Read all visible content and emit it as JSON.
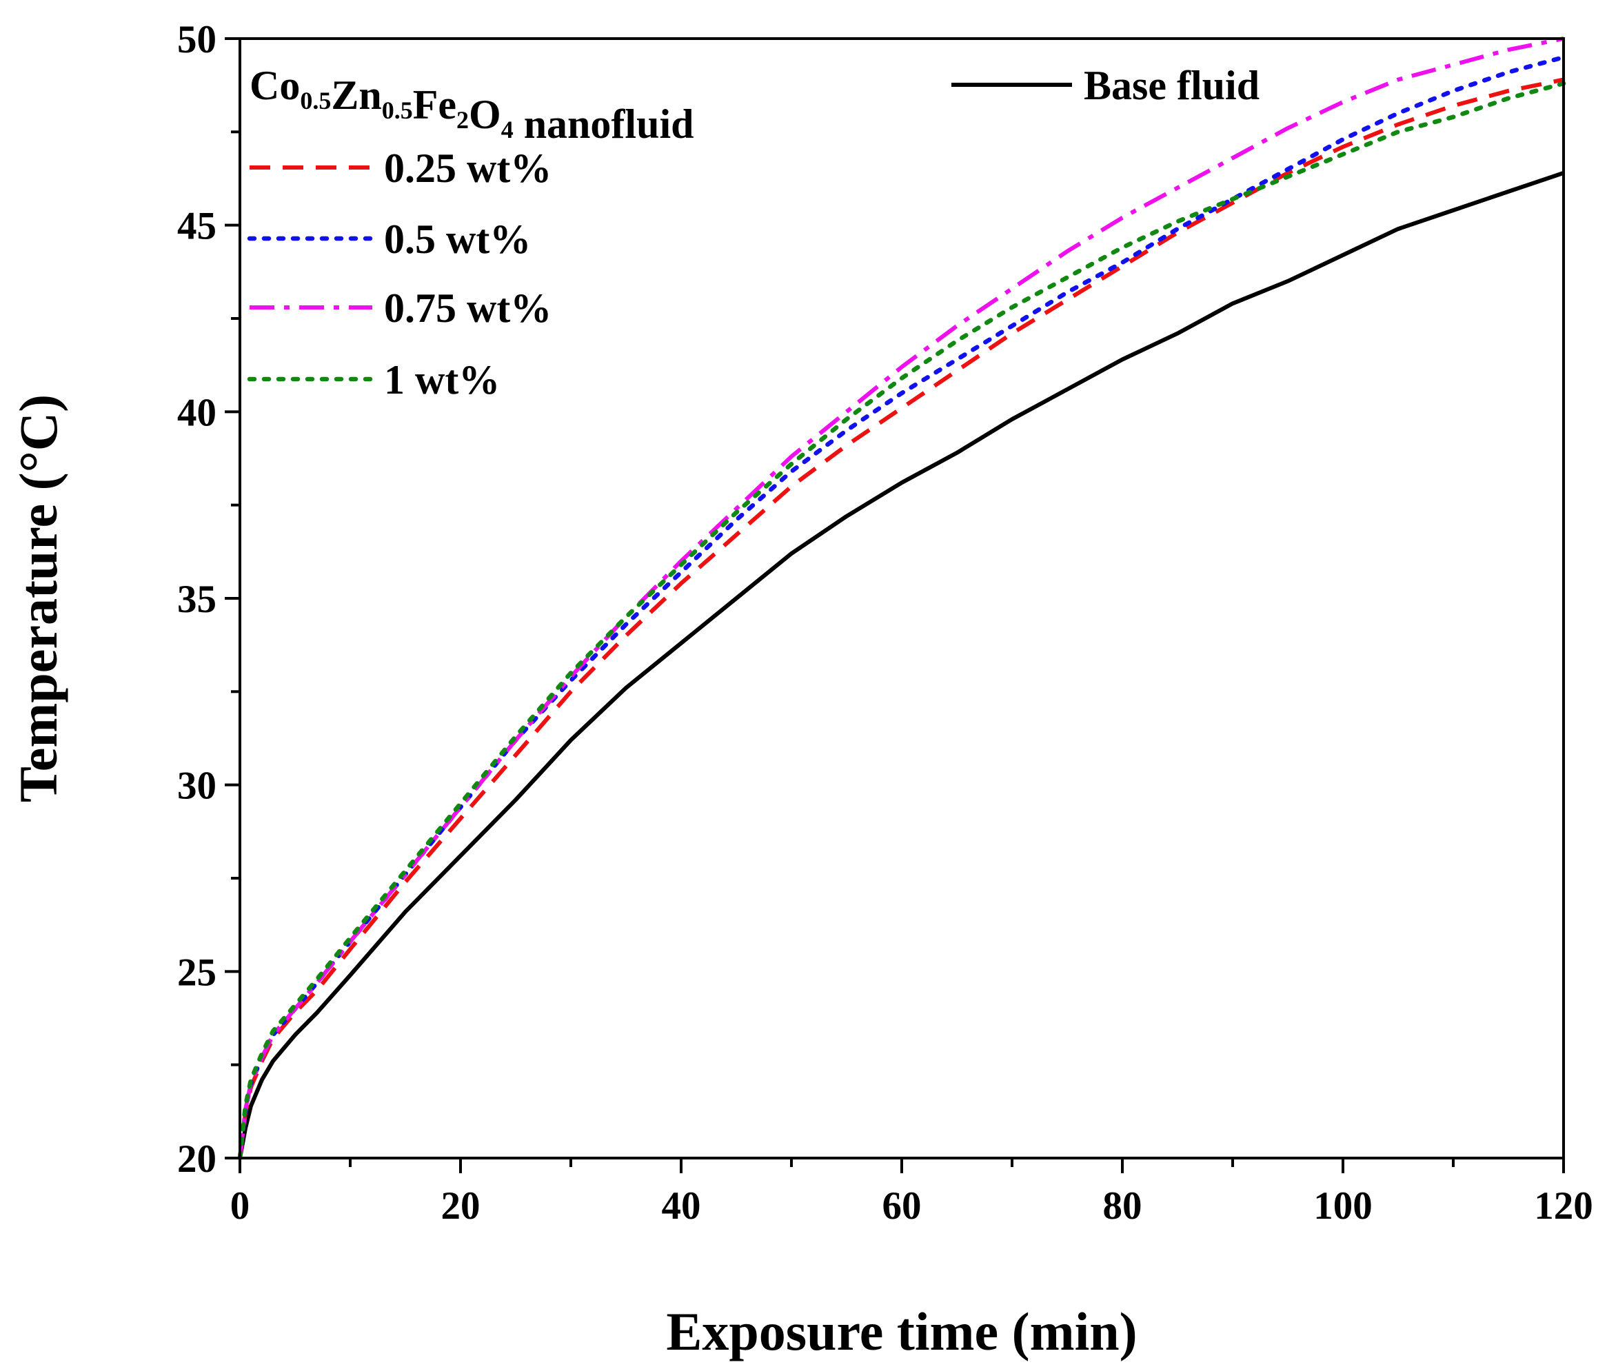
{
  "chart_data": {
    "type": "line",
    "title": "",
    "xlabel": "Exposure time (min)",
    "ylabel": "Temperature (°C)",
    "xlim": [
      0,
      120
    ],
    "ylim": [
      20,
      50
    ],
    "xticks": [
      0,
      20,
      40,
      60,
      80,
      100,
      120
    ],
    "yticks": [
      20,
      25,
      30,
      35,
      40,
      45,
      50
    ],
    "legend_group_title": {
      "parts": [
        {
          "text": "Co",
          "sub": "0.5"
        },
        {
          "text": "Zn",
          "sub": "0.5"
        },
        {
          "text": "Fe",
          "sub": "2"
        },
        {
          "text": "O",
          "sub": "4"
        },
        {
          "text": " nanofluid",
          "sub": ""
        }
      ]
    },
    "series": [
      {
        "name": "Base fluid",
        "color": "#000000",
        "style": "solid",
        "x": [
          0,
          0.5,
          1,
          2,
          3,
          5,
          7,
          10,
          15,
          20,
          25,
          30,
          35,
          40,
          45,
          50,
          55,
          60,
          65,
          70,
          75,
          80,
          85,
          90,
          95,
          100,
          105,
          110,
          115,
          120
        ],
        "y": [
          20.0,
          20.8,
          21.4,
          22.1,
          22.6,
          23.3,
          23.9,
          24.9,
          26.6,
          28.1,
          29.6,
          31.2,
          32.6,
          33.8,
          35.0,
          36.2,
          37.2,
          38.1,
          38.9,
          39.8,
          40.6,
          41.4,
          42.1,
          42.9,
          43.5,
          44.2,
          44.9,
          45.4,
          45.9,
          46.4
        ]
      },
      {
        "name": "0.25 wt%",
        "color": "#ee1111",
        "style": "dash",
        "x": [
          0,
          0.5,
          1,
          2,
          3,
          5,
          7,
          10,
          15,
          20,
          25,
          30,
          35,
          40,
          45,
          50,
          55,
          60,
          65,
          70,
          75,
          80,
          85,
          90,
          95,
          100,
          105,
          110,
          115,
          120
        ],
        "y": [
          20.0,
          21.2,
          21.9,
          22.6,
          23.2,
          23.9,
          24.5,
          25.6,
          27.4,
          29.1,
          30.8,
          32.5,
          34.0,
          35.4,
          36.7,
          38.0,
          39.1,
          40.1,
          41.1,
          42.1,
          43.0,
          43.9,
          44.8,
          45.6,
          46.4,
          47.1,
          47.7,
          48.2,
          48.6,
          48.9
        ]
      },
      {
        "name": "0.5 wt%",
        "color": "#1111ee",
        "style": "dot",
        "x": [
          0,
          0.5,
          1,
          2,
          3,
          5,
          7,
          10,
          15,
          20,
          25,
          30,
          35,
          40,
          45,
          50,
          55,
          60,
          65,
          70,
          75,
          80,
          85,
          90,
          95,
          100,
          105,
          110,
          115,
          120
        ],
        "y": [
          20.0,
          21.3,
          22.0,
          22.7,
          23.3,
          24.0,
          24.7,
          25.8,
          27.6,
          29.4,
          31.2,
          32.8,
          34.3,
          35.7,
          37.1,
          38.4,
          39.5,
          40.5,
          41.4,
          42.3,
          43.2,
          44.0,
          44.9,
          45.7,
          46.5,
          47.3,
          48.0,
          48.6,
          49.1,
          49.5
        ]
      },
      {
        "name": "0.75 wt%",
        "color": "#ee11ee",
        "style": "dashdot",
        "x": [
          0,
          0.5,
          1,
          2,
          3,
          5,
          7,
          10,
          15,
          20,
          25,
          30,
          35,
          40,
          45,
          50,
          55,
          60,
          65,
          70,
          75,
          80,
          85,
          90,
          95,
          100,
          105,
          110,
          115,
          120
        ],
        "y": [
          20.0,
          21.3,
          22.0,
          22.7,
          23.3,
          24.0,
          24.7,
          25.8,
          27.6,
          29.4,
          31.2,
          32.9,
          34.5,
          36.0,
          37.4,
          38.8,
          40.0,
          41.2,
          42.3,
          43.3,
          44.3,
          45.2,
          46.0,
          46.8,
          47.6,
          48.3,
          48.9,
          49.3,
          49.7,
          50.0
        ]
      },
      {
        "name": "1 wt%",
        "color": "#118811",
        "style": "dot",
        "x": [
          0,
          0.5,
          1,
          2,
          3,
          5,
          7,
          10,
          15,
          20,
          25,
          30,
          35,
          40,
          45,
          50,
          55,
          60,
          65,
          70,
          75,
          80,
          85,
          90,
          95,
          100,
          105,
          110,
          115,
          120
        ],
        "y": [
          20.0,
          21.4,
          22.1,
          22.8,
          23.4,
          24.1,
          24.8,
          25.9,
          27.7,
          29.5,
          31.3,
          33.0,
          34.5,
          35.9,
          37.3,
          38.6,
          39.8,
          40.9,
          41.9,
          42.8,
          43.6,
          44.4,
          45.1,
          45.7,
          46.3,
          46.9,
          47.5,
          47.9,
          48.4,
          48.8
        ]
      }
    ]
  }
}
